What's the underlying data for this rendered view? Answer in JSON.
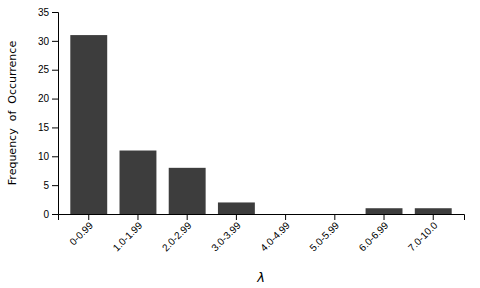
{
  "chart_data": {
    "type": "bar",
    "categories": [
      "0-0.99",
      "1.0-1.99",
      "2.0-2.99",
      "3.0-3.99",
      "4.0-4.99",
      "5.0-5.99",
      "6.0-6.99",
      "7.0-10.0"
    ],
    "values": [
      31,
      11,
      8,
      2,
      0,
      0,
      1,
      1
    ],
    "color": "#3d3d3d",
    "xlabel": "λ",
    "ylabel": "Frequency  of  Occurrence",
    "ylim": [
      0,
      35
    ],
    "yticks": [
      0,
      5,
      10,
      15,
      20,
      25,
      30,
      35
    ],
    "grid": false
  }
}
